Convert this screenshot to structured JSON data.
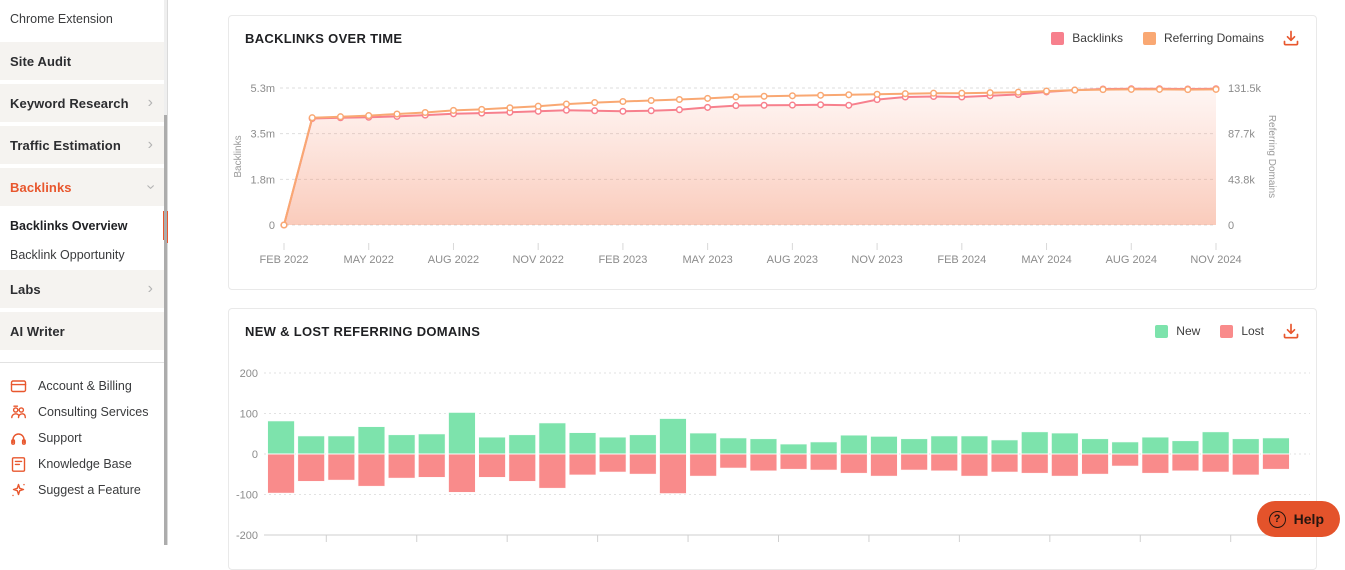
{
  "sidebar": {
    "items": [
      {
        "label": "Chrome Extension",
        "style": "sub first"
      },
      {
        "label": "Site Audit",
        "style": "section"
      },
      {
        "label": "Keyword Research",
        "style": "section",
        "chevron": "right"
      },
      {
        "label": "Traffic Estimation",
        "style": "section",
        "chevron": "right"
      },
      {
        "label": "Backlinks",
        "style": "section-active",
        "chevron": "down"
      },
      {
        "label": "Backlinks Overview",
        "style": "sub-active"
      },
      {
        "label": "Backlink Opportunity",
        "style": "sub"
      },
      {
        "label": "Labs",
        "style": "section",
        "chevron": "right"
      },
      {
        "label": "AI Writer",
        "style": "section"
      }
    ],
    "utility_items": [
      {
        "label": "Account & Billing",
        "icon": "credit-card-icon"
      },
      {
        "label": "Consulting Services",
        "icon": "people-icon"
      },
      {
        "label": "Support",
        "icon": "headset-icon"
      },
      {
        "label": "Knowledge Base",
        "icon": "knowledge-base-icon"
      },
      {
        "label": "Suggest a Feature",
        "icon": "sparkle-icon"
      }
    ]
  },
  "help_button": {
    "label": "Help"
  },
  "colors": {
    "accent_orange": "#E8572E",
    "backlinks_pink": "#F7808D",
    "referring_orange": "#F9A873",
    "new_green": "#7DE3AC",
    "lost_red": "#F98B8B"
  },
  "chart_data": [
    {
      "type": "line",
      "title": "BACKLINKS OVER TIME",
      "x_tick_labels": [
        "FEB 2022",
        "MAY 2022",
        "AUG 2022",
        "NOV 2022",
        "FEB 2023",
        "MAY 2023",
        "AUG 2023",
        "NOV 2023",
        "FEB 2024",
        "MAY 2024",
        "AUG 2024",
        "NOV 2024"
      ],
      "left_axis": {
        "label": "Backlinks",
        "ticks": [
          "0",
          "1.8m",
          "3.5m",
          "5.3m"
        ],
        "max": 5.3
      },
      "right_axis": {
        "label": "Referring Domains",
        "ticks": [
          "0",
          "43.8k",
          "87.7k",
          "131.5k"
        ],
        "max": 131.5
      },
      "legend_position": "top-right",
      "grid": true,
      "series": [
        {
          "name": "Backlinks",
          "axis": "left",
          "color": "#F7808D",
          "unit": "m",
          "values": [
            0,
            4.12,
            4.15,
            4.17,
            4.2,
            4.25,
            4.3,
            4.33,
            4.36,
            4.4,
            4.44,
            4.42,
            4.4,
            4.42,
            4.46,
            4.55,
            4.62,
            4.63,
            4.64,
            4.65,
            4.63,
            4.85,
            4.95,
            4.97,
            4.95,
            5.0,
            5.05,
            5.15,
            5.22,
            5.26,
            5.27,
            5.27,
            5.26,
            5.27
          ]
        },
        {
          "name": "Referring Domains",
          "axis": "right",
          "color": "#F9A873",
          "unit": "k",
          "values": [
            0,
            103,
            104,
            105,
            106.5,
            108,
            110,
            111,
            112.5,
            114,
            116,
            117.5,
            118.5,
            119.5,
            120.5,
            121.5,
            123,
            123.5,
            124,
            124.5,
            125,
            125.5,
            126,
            126.5,
            126.5,
            127,
            127.5,
            128.5,
            129.5,
            130,
            130.2,
            130.2,
            130,
            130.2
          ]
        }
      ]
    },
    {
      "type": "bar",
      "title": "NEW & LOST REFERRING DOMAINS",
      "y_ticks": [
        "200",
        "100",
        "0",
        "-100",
        "-200"
      ],
      "ylim": [
        -200,
        200
      ],
      "legend_position": "top-right",
      "grid": true,
      "series": [
        {
          "name": "New",
          "color": "#7DE3AC",
          "values": [
            82,
            45,
            45,
            68,
            48,
            50,
            103,
            42,
            48,
            77,
            53,
            42,
            48,
            88,
            52,
            40,
            38,
            25,
            30,
            47,
            44,
            38,
            45,
            45,
            35,
            55,
            52,
            38,
            30,
            42,
            33,
            55,
            38,
            40
          ]
        },
        {
          "name": "Lost",
          "color": "#F98B8B",
          "values": [
            -97,
            -68,
            -65,
            -80,
            -60,
            -58,
            -95,
            -58,
            -68,
            -85,
            -52,
            -45,
            -50,
            -98,
            -55,
            -35,
            -42,
            -38,
            -40,
            -48,
            -55,
            -40,
            -42,
            -55,
            -45,
            -48,
            -55,
            -50,
            -30,
            -48,
            -42,
            -45,
            -52,
            -38
          ]
        }
      ]
    }
  ]
}
